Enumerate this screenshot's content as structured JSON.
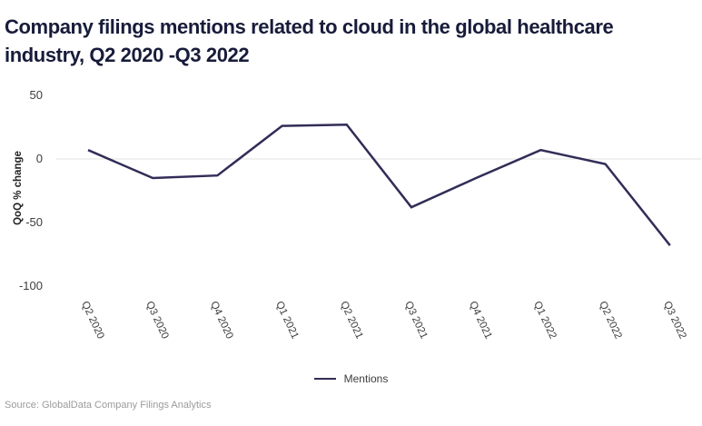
{
  "title": "Company filings mentions related to cloud in the global healthcare industry, Q2 2020 -Q3 2022",
  "source": "Source: GlobalData Company Filings Analytics",
  "legend": {
    "label": "Mentions"
  },
  "y_axis": {
    "label": "QoQ % change"
  },
  "chart_data": {
    "type": "line",
    "title": "Company filings mentions related to cloud in the global healthcare industry, Q2 2020 -Q3 2022",
    "categories": [
      "Q2 2020",
      "Q3 2020",
      "Q4 2020",
      "Q1 2021",
      "Q2 2021",
      "Q3 2021",
      "Q4 2021",
      "Q1 2022",
      "Q2 2022",
      "Q3 2022"
    ],
    "series": [
      {
        "name": "Mentions",
        "values": [
          7,
          -15,
          -13,
          26,
          27,
          -38,
          -15,
          7,
          -4,
          -68
        ]
      }
    ],
    "xlabel": "",
    "ylabel": "QoQ % change",
    "ylim": [
      -110,
      60
    ],
    "yticks": [
      50,
      0,
      -50,
      -100
    ],
    "grid": "horizontal zero-line only",
    "legend_position": "bottom-center",
    "colors": {
      "line": "#312d57",
      "grid": "#e2e2e2",
      "title": "#181c3a",
      "axis_text": "#3d3d3d",
      "source": "#9b9b9b"
    }
  }
}
